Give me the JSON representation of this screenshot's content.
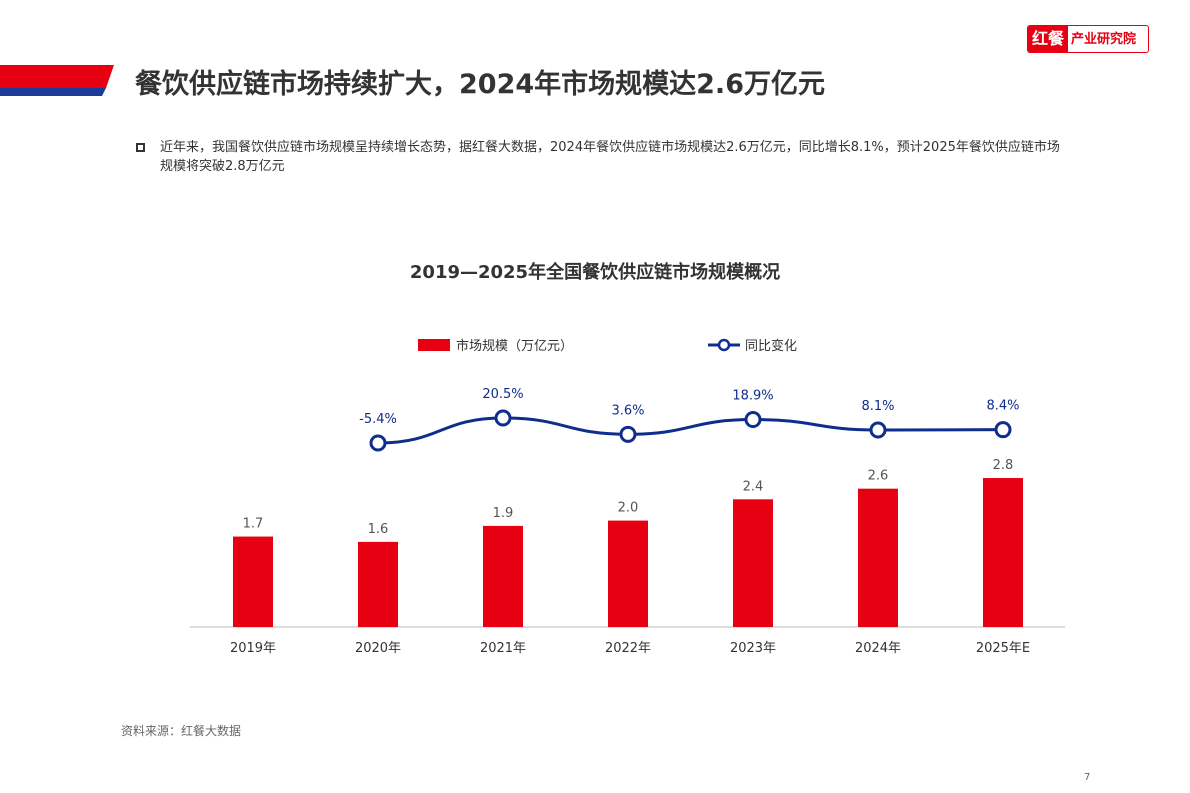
{
  "logo": {
    "mark": "红餐",
    "text": "产业研究院"
  },
  "title": "餐饮供应链市场持续扩大，2024年市场规模达2.6万亿元",
  "description": "近年来，我国餐饮供应链市场规模呈持续增长态势，据红餐大数据，2024年餐饮供应链市场规模达2.6万亿元，同比增长8.1%，预计2025年餐饮供应链市场规模将突破2.8万亿元",
  "source": "资料来源：红餐大数据",
  "page_number": "7",
  "watermark": "红餐 产业研究院",
  "colors": {
    "bar": "#e60012",
    "line": "#0f2d8c"
  },
  "chart_data": {
    "type": "bar+line",
    "title": "2019—2025年全国餐饮供应链市场规模概况",
    "categories": [
      "2019年",
      "2020年",
      "2021年",
      "2022年",
      "2023年",
      "2024年",
      "2025年E"
    ],
    "series": [
      {
        "name": "市场规模（万亿元）",
        "type": "bar",
        "values": [
          1.7,
          1.6,
          1.9,
          2.0,
          2.4,
          2.6,
          2.8
        ],
        "labels": [
          "1.7",
          "1.6",
          "1.9",
          "2.0",
          "2.4",
          "2.6",
          "2.8"
        ]
      },
      {
        "name": "同比变化",
        "type": "line",
        "values": [
          null,
          -5.4,
          20.5,
          3.6,
          18.9,
          8.1,
          8.4
        ],
        "labels": [
          "",
          "-5.4%",
          "20.5%",
          "3.6%",
          "18.9%",
          "8.1%",
          "8.4%"
        ]
      }
    ],
    "legend": "top-center"
  }
}
